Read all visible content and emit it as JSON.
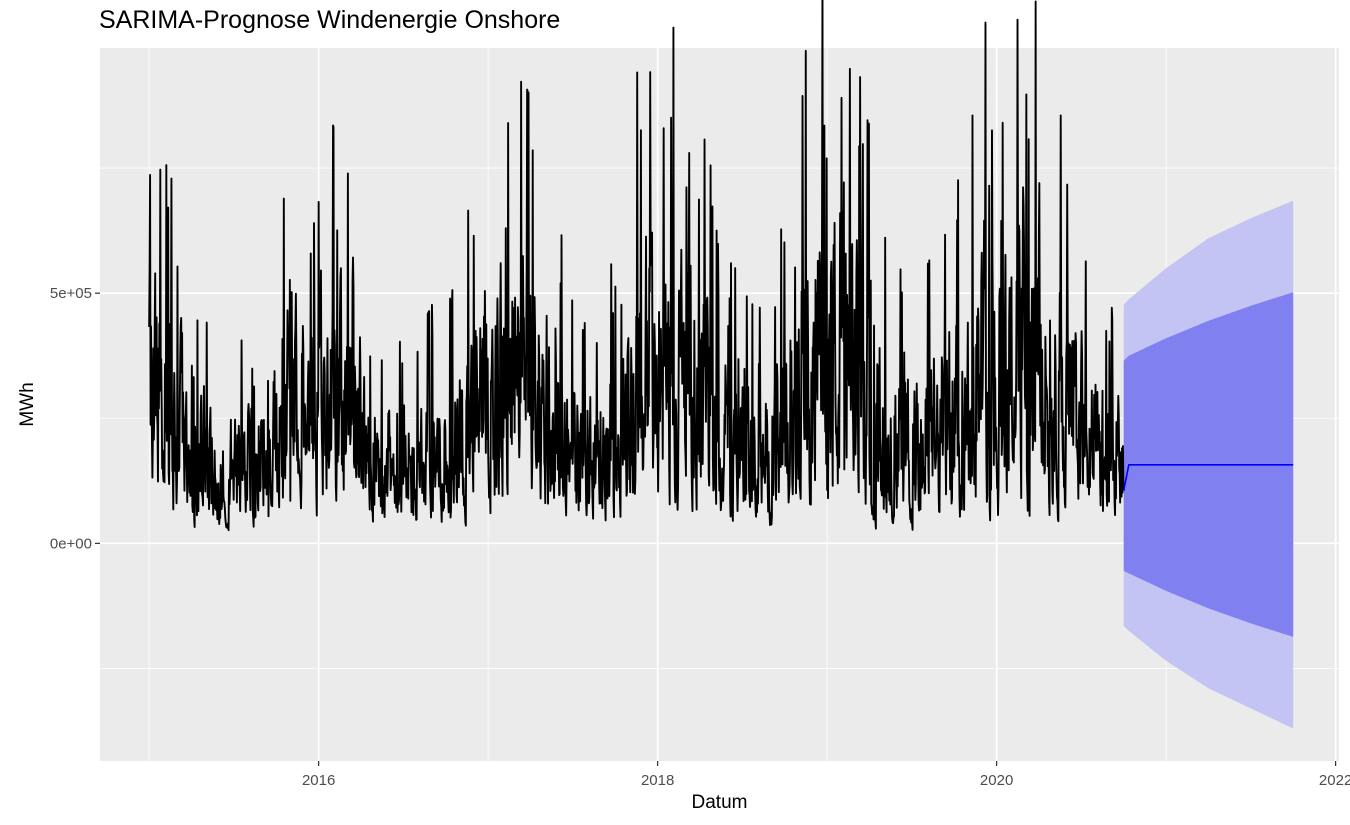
{
  "chart_data": {
    "type": "line",
    "title": "SARIMA-Prognose Windenergie Onshore",
    "xlabel": "Datum",
    "ylabel": "MWh",
    "xlim": [
      2014.71,
      2022.02
    ],
    "ylim": [
      -435000,
      990000
    ],
    "grid": true,
    "legend": "none",
    "x_ticks": [
      {
        "value": 2016,
        "label": "2016"
      },
      {
        "value": 2018,
        "label": "2018"
      },
      {
        "value": 2020,
        "label": "2020"
      },
      {
        "value": 2022,
        "label": "2022"
      }
    ],
    "y_ticks": [
      {
        "value": 0,
        "label": "0e+00"
      },
      {
        "value": 500000,
        "label": "5e+05"
      }
    ],
    "colors": {
      "panel_background": "#ebebeb",
      "grid": "#ffffff",
      "observed_line": "#000000",
      "forecast_line": "#0000ff",
      "interval_80": "#8080f0",
      "interval_95": "#c4c4f4"
    },
    "observed": {
      "start": 2015.0,
      "end": 2020.75,
      "frequency": "daily",
      "seasonal_envelope": [
        {
          "x": 2015.0,
          "base": 110000,
          "peak": 630000
        },
        {
          "x": 2015.5,
          "base": 60000,
          "peak": 320000
        },
        {
          "x": 2016.0,
          "base": 100000,
          "peak": 690000
        },
        {
          "x": 2016.5,
          "base": 50000,
          "peak": 330000
        },
        {
          "x": 2017.2,
          "base": 110000,
          "peak": 730000
        },
        {
          "x": 2017.6,
          "base": 60000,
          "peak": 350000
        },
        {
          "x": 2018.0,
          "base": 130000,
          "peak": 850000
        },
        {
          "x": 2018.6,
          "base": 60000,
          "peak": 380000
        },
        {
          "x": 2019.0,
          "base": 140000,
          "peak": 900000
        },
        {
          "x": 2019.5,
          "base": 60000,
          "peak": 420000
        },
        {
          "x": 2020.1,
          "base": 160000,
          "peak": 920000
        },
        {
          "x": 2020.7,
          "base": 50000,
          "peak": 380000
        }
      ],
      "last_value": 105000
    },
    "forecast": {
      "x": [
        2020.75,
        2020.78,
        2021.0,
        2021.25,
        2021.5,
        2021.75
      ],
      "mean": [
        105000,
        157000,
        157000,
        157000,
        157000,
        157000
      ],
      "lo80": [
        -55000,
        -60000,
        -95000,
        -130000,
        -160000,
        -187000
      ],
      "hi80": [
        365000,
        375000,
        410000,
        445000,
        475000,
        502000
      ],
      "lo95": [
        -165000,
        -175000,
        -235000,
        -290000,
        -330000,
        -370000
      ],
      "hi95": [
        477000,
        488000,
        550000,
        610000,
        650000,
        685000
      ]
    }
  }
}
